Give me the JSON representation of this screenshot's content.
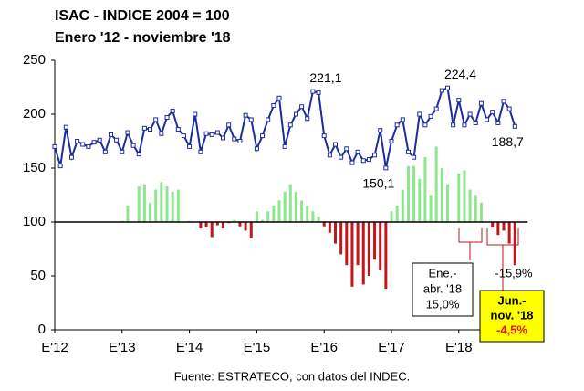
{
  "chart_data": {
    "type": "line-bar",
    "title": "ISAC - INDICE 2004 = 100",
    "subtitle": "Enero '12 - noviembre '18",
    "source": "Fuente: ESTRATECO, con datos del INDEC.",
    "ylim": [
      0,
      250
    ],
    "yticks": [
      0,
      50,
      100,
      150,
      200,
      250
    ],
    "baseline": 100,
    "categories": [
      "E'12",
      null,
      null,
      null,
      null,
      null,
      null,
      null,
      null,
      null,
      null,
      null,
      "E'13",
      null,
      null,
      null,
      null,
      null,
      null,
      null,
      null,
      null,
      null,
      null,
      "E'14",
      null,
      null,
      null,
      null,
      null,
      null,
      null,
      null,
      null,
      null,
      null,
      "E'15",
      null,
      null,
      null,
      null,
      null,
      null,
      null,
      null,
      null,
      null,
      null,
      "E'16",
      null,
      null,
      null,
      null,
      null,
      null,
      null,
      null,
      null,
      null,
      null,
      "E'17",
      null,
      null,
      null,
      null,
      null,
      null,
      null,
      null,
      null,
      null,
      null,
      "E'18",
      null,
      null,
      null,
      null,
      null,
      null,
      null,
      null,
      null,
      null
    ],
    "line": {
      "color": "#1c2d9c",
      "values": [
        170,
        152,
        188,
        160,
        175,
        172,
        170,
        174,
        176,
        165,
        181,
        176,
        165,
        183,
        171,
        163,
        187,
        186,
        195,
        182,
        197,
        203,
        186,
        180,
        170,
        200,
        165,
        182,
        181,
        183,
        178,
        190,
        177,
        175,
        199,
        195,
        168,
        180,
        195,
        208,
        215,
        170,
        190,
        200,
        207,
        196,
        221.1,
        220,
        180,
        162,
        172,
        160,
        168,
        155,
        165,
        157,
        158,
        162,
        185,
        150.1,
        175,
        190,
        195,
        165,
        160,
        200,
        190,
        198,
        205,
        222,
        224.4,
        190,
        213,
        190,
        200,
        192,
        210,
        195,
        202,
        192,
        212,
        205,
        188.7
      ],
      "value_labels": [
        null,
        null,
        null,
        null,
        null,
        null,
        null,
        null,
        null,
        null,
        null,
        null,
        null,
        null,
        null,
        null,
        null,
        null,
        null,
        null,
        null,
        null,
        null,
        null,
        null,
        null,
        null,
        null,
        null,
        null,
        null,
        null,
        null,
        null,
        null,
        null,
        null,
        null,
        null,
        null,
        null,
        null,
        null,
        null,
        null,
        null,
        "221,1",
        null,
        null,
        null,
        null,
        null,
        null,
        null,
        null,
        null,
        null,
        null,
        null,
        "150,1",
        null,
        null,
        null,
        null,
        null,
        null,
        null,
        null,
        null,
        null,
        "224,4",
        null,
        null,
        null,
        null,
        null,
        null,
        null,
        null,
        null,
        null,
        null,
        "188,7"
      ]
    },
    "bars": {
      "up_color": "#8ee68e",
      "down_color": "#c3161c",
      "values": [
        null,
        null,
        null,
        null,
        null,
        null,
        null,
        null,
        null,
        null,
        null,
        null,
        101,
        115,
        100,
        133,
        135,
        118,
        130,
        137,
        133,
        128,
        130,
        100,
        101,
        100,
        94,
        95,
        86,
        97,
        94,
        99,
        102,
        96,
        92,
        85,
        110,
        102,
        110,
        115,
        120,
        128,
        135,
        128,
        120,
        115,
        110,
        105,
        96,
        90,
        80,
        70,
        60,
        40,
        60,
        42,
        50,
        65,
        55,
        38,
        110,
        115,
        130,
        152,
        152,
        140,
        160,
        125,
        170,
        150,
        135,
        100,
        145,
        148,
        130,
        125,
        118,
        100,
        95,
        88,
        92,
        80,
        60
      ]
    },
    "annotations": [
      {
        "lines": [
          "Ene.-",
          "abr. '18",
          "15,0%"
        ]
      },
      {
        "lines": [
          "Jun.-",
          "nov. '18",
          "-4,5%"
        ]
      },
      {
        "lines": [
          "-15,9%"
        ]
      }
    ]
  }
}
